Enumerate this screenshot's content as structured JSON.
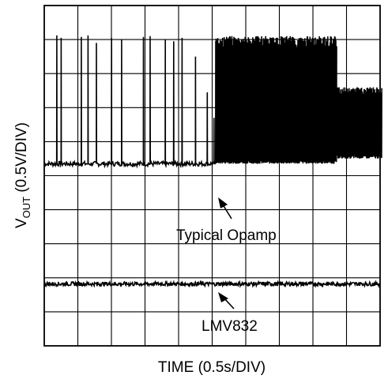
{
  "chart_data": {
    "type": "line",
    "xlabel": "TIME (0.5s/DIV)",
    "ylabel_main": "V",
    "ylabel_sub": "OUT",
    "ylabel_rest": " (0.5V/DIV)",
    "grid": true,
    "divisions": {
      "x": 10,
      "y": 10
    },
    "x_range_div": [
      0,
      10
    ],
    "y_range_div": [
      0,
      10
    ],
    "series": [
      {
        "annotation": "Typical Opamp",
        "baseline_div": 5.35,
        "noise_div": 0.07,
        "spikes": [
          {
            "t_div": 0.37,
            "peak_div": 9.12
          },
          {
            "t_div": 0.5,
            "peak_div": 9.05
          },
          {
            "t_div": 1.1,
            "peak_div": 9.08
          },
          {
            "t_div": 1.3,
            "peak_div": 9.12
          },
          {
            "t_div": 1.55,
            "peak_div": 8.9
          },
          {
            "t_div": 2.0,
            "peak_div": 9.05
          },
          {
            "t_div": 2.3,
            "peak_div": 9.0
          },
          {
            "t_div": 2.95,
            "peak_div": 9.08
          },
          {
            "t_div": 3.15,
            "peak_div": 9.1
          },
          {
            "t_div": 3.6,
            "peak_div": 9.0
          },
          {
            "t_div": 3.85,
            "peak_div": 8.95
          },
          {
            "t_div": 4.1,
            "peak_div": 9.05
          },
          {
            "t_div": 4.5,
            "peak_div": 8.5
          },
          {
            "t_div": 4.85,
            "peak_div": 7.45
          },
          {
            "t_div": 5.05,
            "peak_div": 6.7
          }
        ],
        "burst_high": {
          "t_start_div": 5.1,
          "t_end_div": 8.7,
          "top_div": 9.1,
          "bottom_div": 5.35
        },
        "burst_low": {
          "t_start_div": 8.7,
          "t_end_div": 10.05,
          "top_div": 7.6,
          "bottom_div": 5.5
        }
      },
      {
        "annotation": "LMV832",
        "baseline_div": 1.82,
        "noise_div": 0.06
      }
    ]
  }
}
